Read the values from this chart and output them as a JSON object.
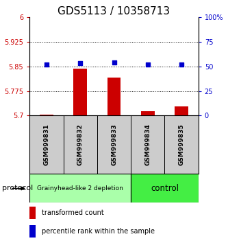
{
  "title": "GDS5113 / 10358713",
  "samples": [
    "GSM999831",
    "GSM999832",
    "GSM999833",
    "GSM999834",
    "GSM999835"
  ],
  "bar_values": [
    5.703,
    5.843,
    5.815,
    5.714,
    5.728
  ],
  "scatter_values": [
    52,
    53,
    54,
    52,
    52
  ],
  "ylim_left": [
    5.7,
    6.0
  ],
  "ylim_right": [
    0,
    100
  ],
  "yticks_left": [
    5.7,
    5.775,
    5.85,
    5.925,
    6.0
  ],
  "ytick_labels_left": [
    "5.7",
    "5.775",
    "5.85",
    "5.925",
    "6"
  ],
  "yticks_right": [
    0,
    25,
    50,
    75,
    100
  ],
  "ytick_labels_right": [
    "0",
    "25",
    "50",
    "75",
    "100%"
  ],
  "bar_color": "#cc0000",
  "scatter_color": "#0000cc",
  "hline_values": [
    5.775,
    5.85,
    5.925
  ],
  "group_configs": [
    {
      "indices": [
        0,
        1,
        2
      ],
      "label": "Grainyhead-like 2 depletion",
      "color": "#aaffaa",
      "fontsize": 6.5
    },
    {
      "indices": [
        3,
        4
      ],
      "label": "control",
      "color": "#44ee44",
      "fontsize": 8.5
    }
  ],
  "protocol_label": "protocol",
  "legend_bar_label": "transformed count",
  "legend_scatter_label": "percentile rank within the sample",
  "title_fontsize": 11,
  "axis_label_color_left": "#cc0000",
  "axis_label_color_right": "#0000cc",
  "sample_box_color": "#cccccc",
  "bg_color": "#ffffff"
}
